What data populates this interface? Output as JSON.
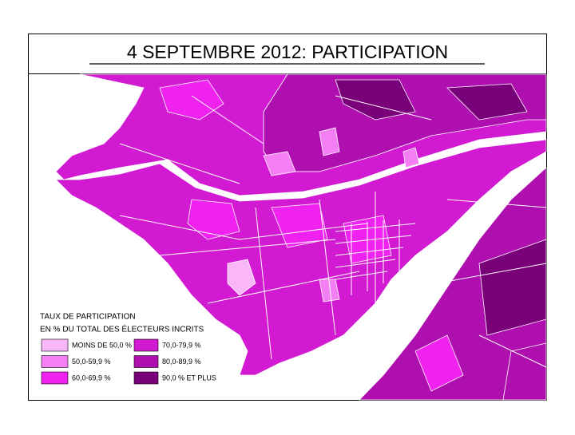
{
  "title": "4 SEPTEMBRE 2012: PARTICIPATION",
  "legend": {
    "title_lines": [
      "TAUX DE PARTICIPATION",
      "EN % DU TOTAL DES ÉLECTEURS INCRITS"
    ],
    "items": [
      {
        "label": "MOINS DE 50,0 %",
        "color": "#f9b6f9"
      },
      {
        "label": "50,0-59,9 %",
        "color": "#f47ff4"
      },
      {
        "label": "60,0-69,9 %",
        "color": "#f022f0"
      },
      {
        "label": "70,0-79,9 %",
        "color": "#d11ad1"
      },
      {
        "label": "80,0-89,9 %",
        "color": "#ae0fae"
      },
      {
        "label": "90,0 % ET PLUS",
        "color": "#780078"
      }
    ]
  }
}
